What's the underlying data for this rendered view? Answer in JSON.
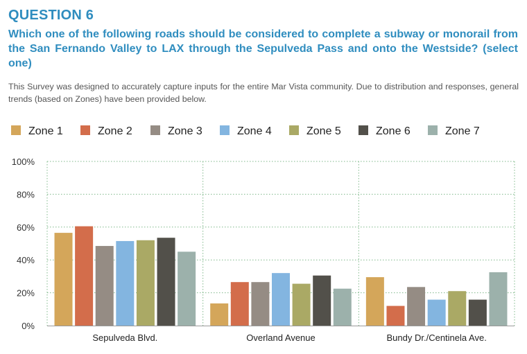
{
  "question": "QUESTION 6",
  "prompt": "Which one of the following roads should be considered to complete a subway or monorail from the San Fernando Valley to LAX through the Sepulveda Pass and onto the Westside? (select one)",
  "description": "This Survey was designed to accurately capture inputs for the entire Mar Vista community. Due to distribution and responses, general trends (based on Zones) have been provided below.",
  "chart_data": {
    "type": "bar",
    "categories": [
      "Sepulveda Blvd.",
      "Overland Avenue",
      "Bundy Dr./Centinela Ave."
    ],
    "series": [
      {
        "name": "Zone 1",
        "color": "#d4a65a",
        "values": [
          56.5,
          13.5,
          29.5
        ]
      },
      {
        "name": "Zone 2",
        "color": "#d36d4b",
        "values": [
          60.5,
          26.5,
          12.0
        ]
      },
      {
        "name": "Zone 3",
        "color": "#958c84",
        "values": [
          48.5,
          26.5,
          23.5
        ]
      },
      {
        "name": "Zone 4",
        "color": "#83b5e0",
        "values": [
          51.5,
          32.0,
          15.8
        ]
      },
      {
        "name": "Zone 5",
        "color": "#aaa965",
        "values": [
          52.0,
          25.5,
          21.0
        ]
      },
      {
        "name": "Zone 6",
        "color": "#52504a",
        "values": [
          53.5,
          30.5,
          15.8
        ]
      },
      {
        "name": "Zone 7",
        "color": "#9cb1ab",
        "values": [
          45.0,
          22.5,
          32.5
        ]
      }
    ],
    "yticks": [
      "0%",
      "20%",
      "40%",
      "60%",
      "80%",
      "100%"
    ],
    "ylim": [
      0,
      100
    ],
    "grid": true,
    "legend": "top"
  }
}
